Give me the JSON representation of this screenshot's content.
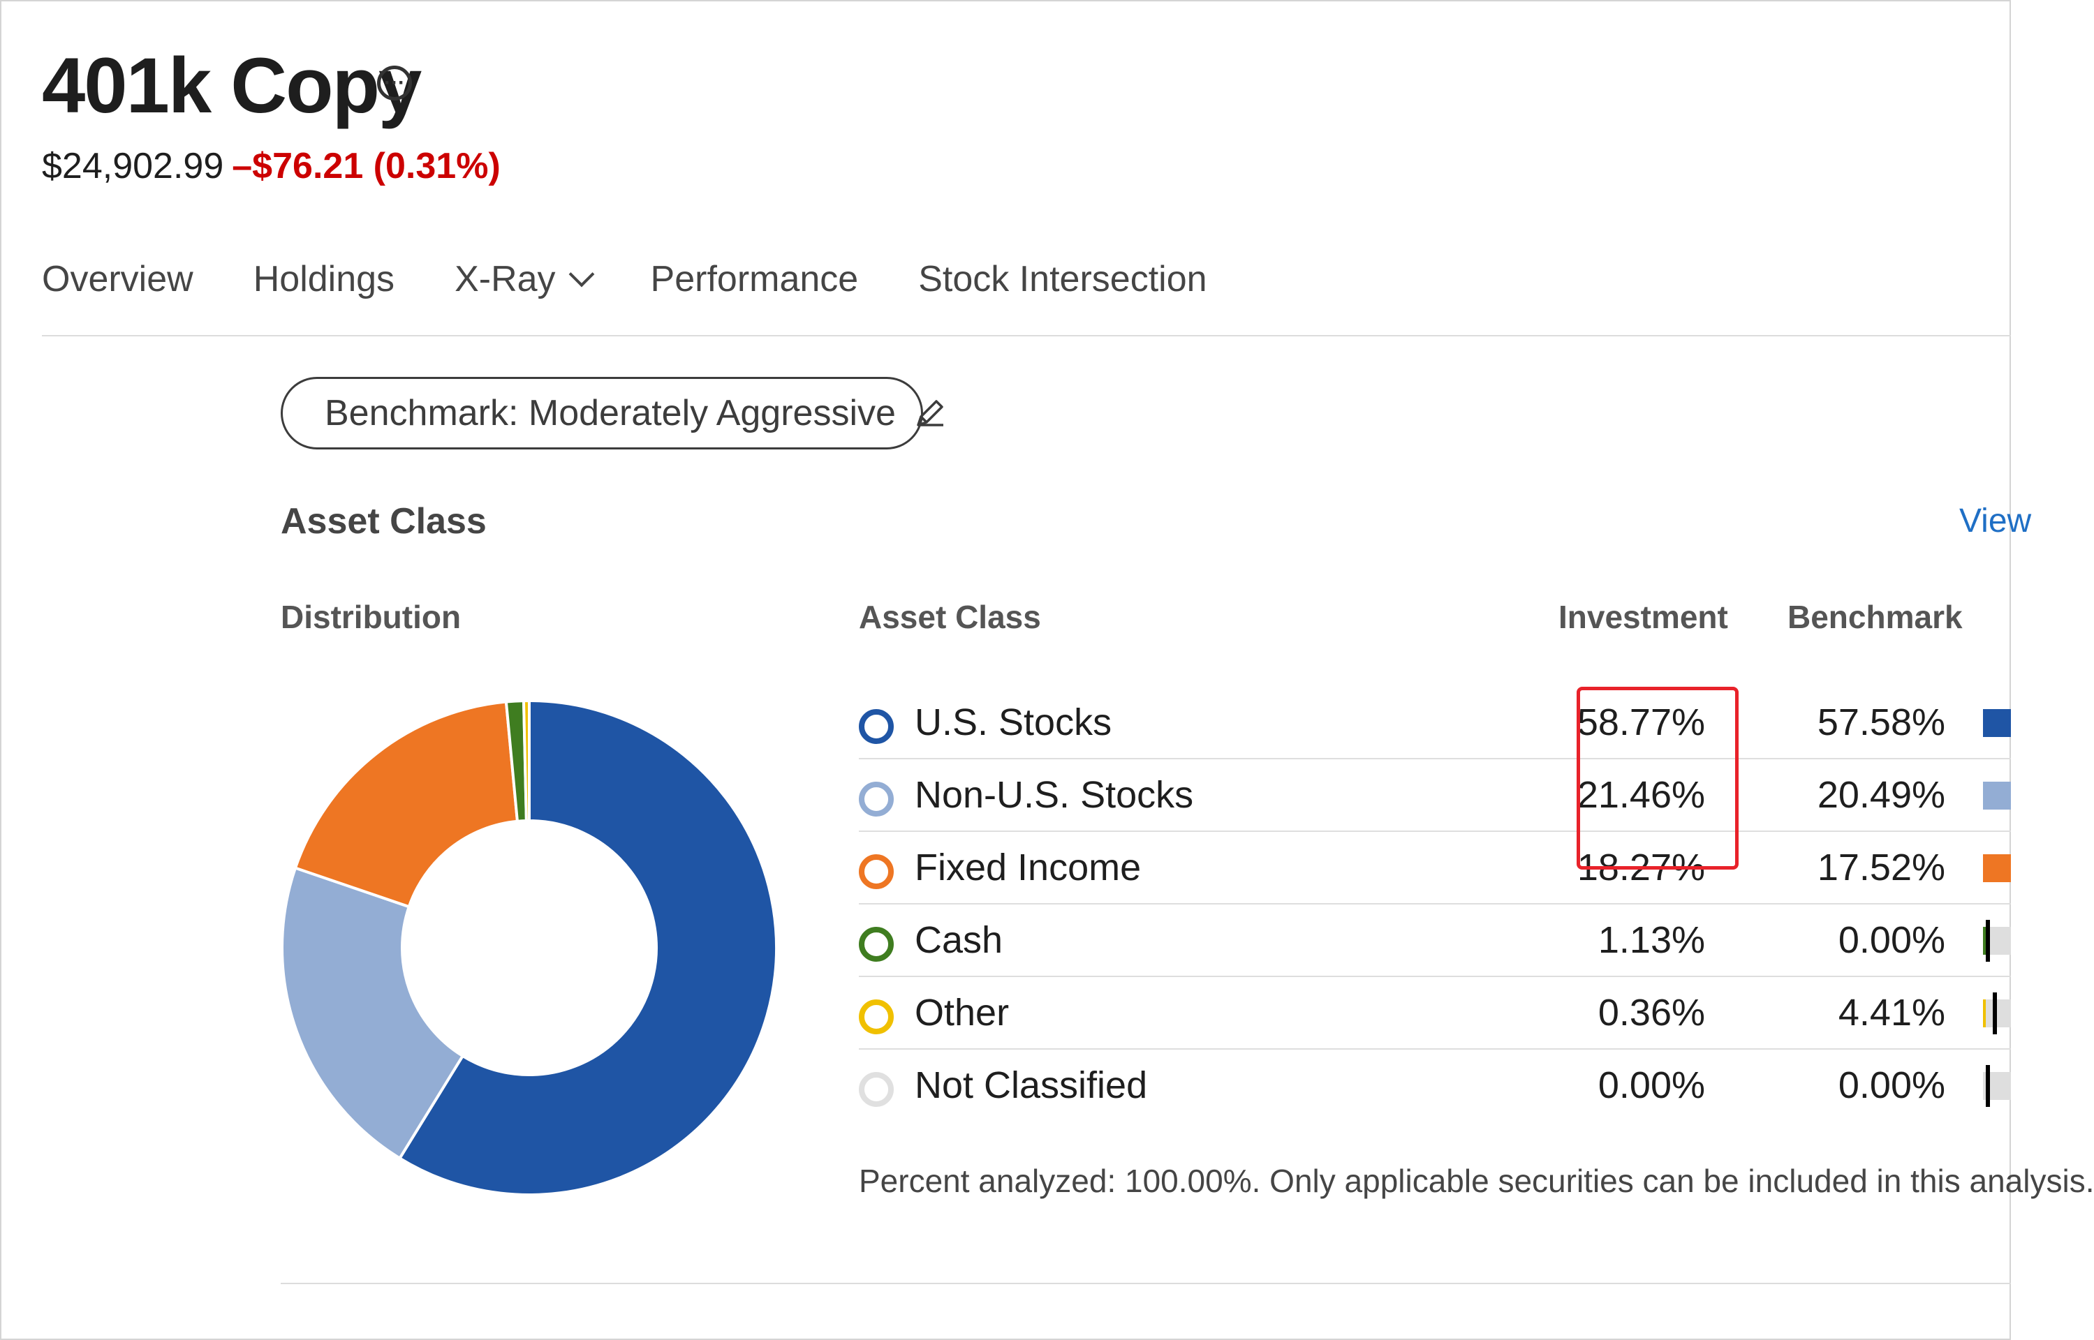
{
  "portfolio": {
    "title": "401k Copy",
    "value": "$24,902.99",
    "change": "–$76.21 (0.31%)"
  },
  "tabs": [
    {
      "label": "Overview"
    },
    {
      "label": "Holdings"
    },
    {
      "label": "X-Ray"
    },
    {
      "label": "Performance"
    },
    {
      "label": "Stock Intersection"
    }
  ],
  "benchmark_button": {
    "label": "Benchmark: Moderately Aggressive"
  },
  "section": {
    "title": "Asset Class",
    "view_link": "View"
  },
  "distribution_label": "Distribution",
  "table": {
    "headers": {
      "asset_class": "Asset Class",
      "investment": "Investment",
      "benchmark": "Benchmark"
    },
    "rows": [
      {
        "label": "U.S. Stocks",
        "investment": "58.77%",
        "benchmark": "57.58%",
        "color": "#1f55a5"
      },
      {
        "label": "Non-U.S. Stocks",
        "investment": "21.46%",
        "benchmark": "20.49%",
        "color": "#93add4"
      },
      {
        "label": "Fixed Income",
        "investment": "18.27%",
        "benchmark": "17.52%",
        "color": "#ee7623"
      },
      {
        "label": "Cash",
        "investment": "1.13%",
        "benchmark": "0.00%",
        "color": "#3f7d20"
      },
      {
        "label": "Other",
        "investment": "0.36%",
        "benchmark": "4.41%",
        "color": "#f0c000"
      },
      {
        "label": "Not Classified",
        "investment": "0.00%",
        "benchmark": "0.00%",
        "color": "#e0e0e0"
      }
    ]
  },
  "footnote": "Percent analyzed: 100.00%. Only applicable securities can be included in this analysis.",
  "chart_data": {
    "type": "pie",
    "categories": [
      "U.S. Stocks",
      "Non-U.S. Stocks",
      "Fixed Income",
      "Cash",
      "Other",
      "Not Classified"
    ],
    "values": [
      58.77,
      21.46,
      18.27,
      1.13,
      0.36,
      0.0
    ],
    "colors": [
      "#1f55a5",
      "#93add4",
      "#ee7623",
      "#3f7d20",
      "#f0c000",
      "#e0e0e0"
    ],
    "benchmark_values": [
      57.58,
      20.49,
      17.52,
      0.0,
      4.41,
      0.0
    ]
  },
  "colors": {
    "negative": "#cc0000",
    "link": "#1f6fc5",
    "highlight": "#e8222a"
  },
  "icons": {
    "more": "more-options-icon",
    "edit": "pencil-icon",
    "tab_dropdown": "chevron-down-icon"
  }
}
